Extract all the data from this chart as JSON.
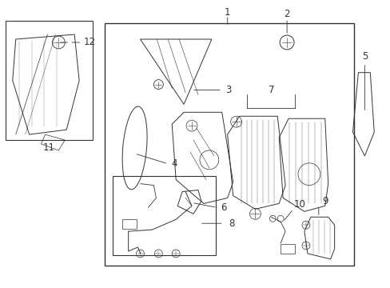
{
  "bg_color": "#ffffff",
  "line_color": "#333333",
  "label_color": "#333333"
}
